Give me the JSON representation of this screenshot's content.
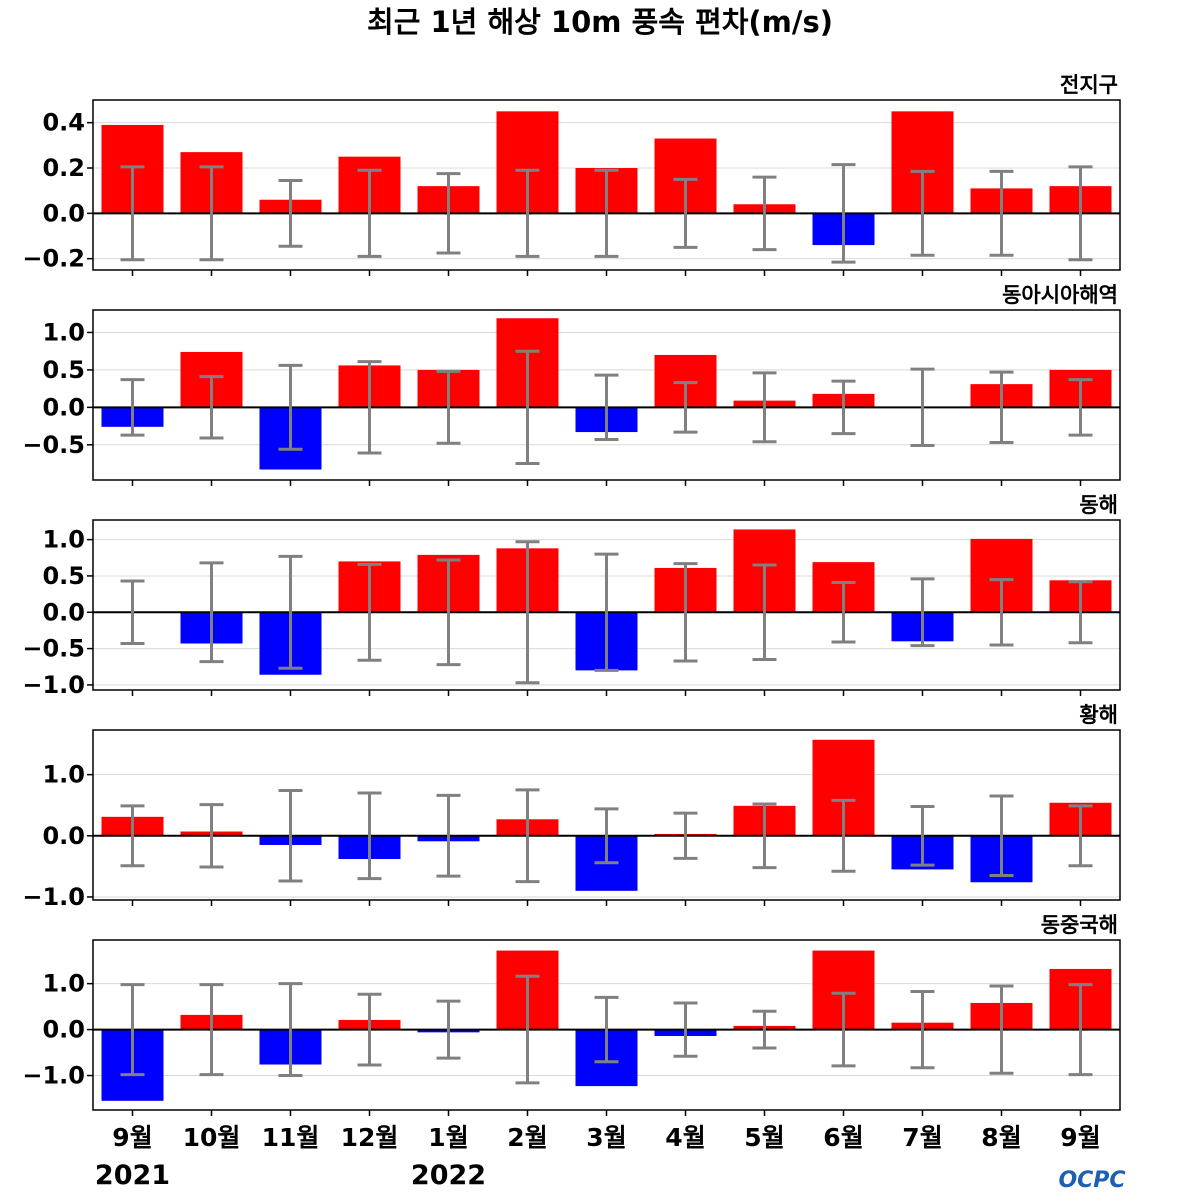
{
  "page": {
    "title": "최근 1년 해상 10m 풍속 편차(m/s)",
    "logo_text": "OCPC",
    "years": [
      {
        "label": "2021",
        "month_index": 0
      },
      {
        "label": "2022",
        "month_index": 4
      }
    ]
  },
  "colors": {
    "positive": "#ff0000",
    "negative": "#0000ff",
    "error_bar": "#808080",
    "zero_line": "#000000",
    "grid": "#d9d9d9",
    "logo": "#1d5fb0"
  },
  "chart_data": [
    {
      "type": "bar",
      "title": "전지구",
      "categories": [
        "9월",
        "10월",
        "11월",
        "12월",
        "1월",
        "2월",
        "3월",
        "4월",
        "5월",
        "6월",
        "7월",
        "8월",
        "9월"
      ],
      "values": [
        0.39,
        0.27,
        0.06,
        0.25,
        0.12,
        0.45,
        0.2,
        0.33,
        0.04,
        -0.14,
        0.45,
        0.11,
        0.12
      ],
      "error": [
        0.205,
        0.205,
        0.145,
        0.19,
        0.175,
        0.19,
        0.19,
        0.15,
        0.16,
        0.215,
        0.185,
        0.185,
        0.205
      ],
      "ylim": [
        -0.25,
        0.5
      ],
      "yticks": [
        -0.2,
        0.0,
        0.2,
        0.4
      ],
      "ytick_labels": [
        "−0.2",
        "0.0",
        "0.2",
        "0.4"
      ],
      "grid": true
    },
    {
      "type": "bar",
      "title": "동아시아해역",
      "categories": [
        "9월",
        "10월",
        "11월",
        "12월",
        "1월",
        "2월",
        "3월",
        "4월",
        "5월",
        "6월",
        "7월",
        "8월",
        "9월"
      ],
      "values": [
        -0.26,
        0.74,
        -0.83,
        0.56,
        0.5,
        1.19,
        -0.33,
        0.7,
        0.09,
        0.18,
        -0.01,
        0.31,
        0.5
      ],
      "error": [
        0.37,
        0.41,
        0.56,
        0.61,
        0.48,
        0.75,
        0.43,
        0.33,
        0.46,
        0.35,
        0.51,
        0.47,
        0.37
      ],
      "ylim": [
        -0.97,
        1.3
      ],
      "yticks": [
        -0.5,
        0.0,
        0.5,
        1.0
      ],
      "ytick_labels": [
        "−0.5",
        "0.0",
        "0.5",
        "1.0"
      ],
      "grid": true
    },
    {
      "type": "bar",
      "title": "동해",
      "categories": [
        "9월",
        "10월",
        "11월",
        "12월",
        "1월",
        "2월",
        "3월",
        "4월",
        "5월",
        "6월",
        "7월",
        "8월",
        "9월"
      ],
      "values": [
        0.01,
        -0.43,
        -0.86,
        0.7,
        0.79,
        0.88,
        -0.8,
        0.61,
        1.14,
        0.69,
        -0.4,
        1.01,
        0.44
      ],
      "error": [
        0.43,
        0.68,
        0.77,
        0.66,
        0.72,
        0.97,
        0.8,
        0.67,
        0.65,
        0.41,
        0.46,
        0.45,
        0.42
      ],
      "ylim": [
        -1.07,
        1.27
      ],
      "yticks": [
        -1.0,
        -0.5,
        0.0,
        0.5,
        1.0
      ],
      "ytick_labels": [
        "−1.0",
        "−0.5",
        "0.0",
        "0.5",
        "1.0"
      ],
      "grid": true
    },
    {
      "type": "bar",
      "title": "황해",
      "categories": [
        "9월",
        "10월",
        "11월",
        "12월",
        "1월",
        "2월",
        "3월",
        "4월",
        "5월",
        "6월",
        "7월",
        "8월",
        "9월"
      ],
      "values": [
        0.31,
        0.07,
        -0.15,
        -0.38,
        -0.09,
        0.27,
        -0.9,
        0.03,
        0.49,
        1.57,
        -0.55,
        -0.76,
        0.54
      ],
      "error": [
        0.49,
        0.51,
        0.74,
        0.7,
        0.66,
        0.75,
        0.44,
        0.37,
        0.52,
        0.58,
        0.48,
        0.65,
        0.49
      ],
      "ylim": [
        -1.05,
        1.73
      ],
      "yticks": [
        -1.0,
        0.0,
        1.0
      ],
      "ytick_labels": [
        "−1.0",
        "0.0",
        "1.0"
      ],
      "grid": true
    },
    {
      "type": "bar",
      "title": "동중국해",
      "categories": [
        "9월",
        "10월",
        "11월",
        "12월",
        "1월",
        "2월",
        "3월",
        "4월",
        "5월",
        "6월",
        "7월",
        "8월",
        "9월"
      ],
      "values": [
        -1.55,
        0.32,
        -0.76,
        0.21,
        -0.06,
        1.72,
        -1.23,
        -0.14,
        0.08,
        1.72,
        0.15,
        0.58,
        1.32
      ],
      "error": [
        0.98,
        0.98,
        1.0,
        0.77,
        0.62,
        1.16,
        0.7,
        0.58,
        0.4,
        0.79,
        0.83,
        0.95,
        0.98
      ],
      "ylim": [
        -1.75,
        1.95
      ],
      "yticks": [
        -1.0,
        0.0,
        1.0
      ],
      "ytick_labels": [
        "−1.0",
        "0.0",
        "1.0"
      ],
      "grid": true
    }
  ]
}
